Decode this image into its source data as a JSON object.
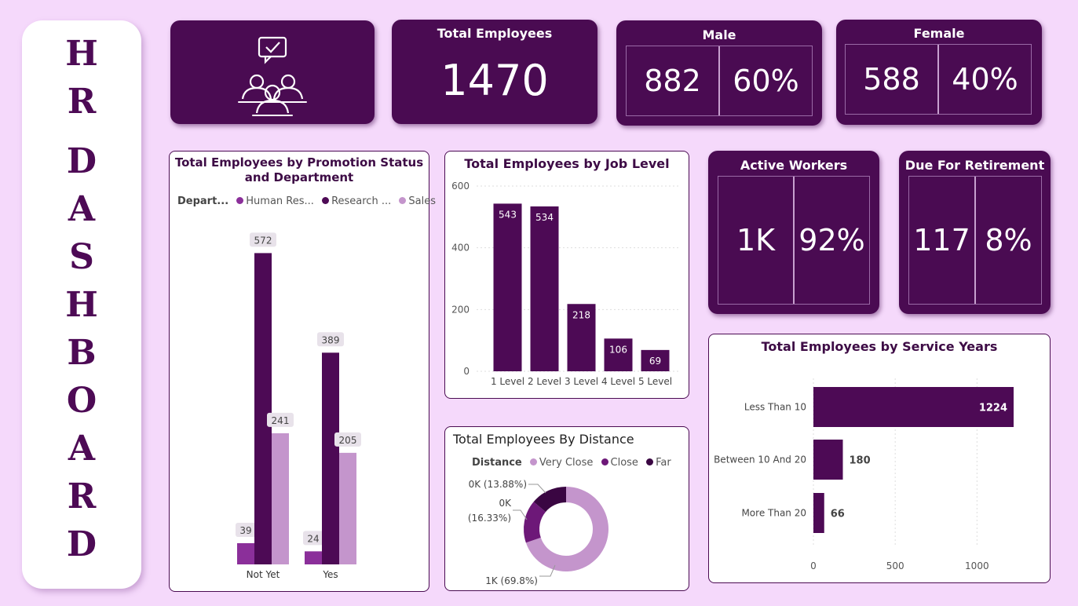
{
  "side_title": [
    "H",
    "R",
    "",
    "D",
    "A",
    "S",
    "H",
    "B",
    "O",
    "A",
    "R",
    "D"
  ],
  "kpis": {
    "total": {
      "title": "Total Employees",
      "value": "1470"
    },
    "male": {
      "title": "Male",
      "count": "882",
      "pct": "60%"
    },
    "female": {
      "title": "Female",
      "count": "588",
      "pct": "40%"
    },
    "active": {
      "title": "Active Workers",
      "count": "1K",
      "pct": "92%"
    },
    "retire": {
      "title": "Due For Retirement",
      "count": "117",
      "pct": "8%"
    }
  },
  "colors": {
    "dark": "#4a0b52",
    "mid": "#8b2f9a",
    "light": "#c495cc",
    "bg": "#f5d9fb"
  },
  "icon": "employees-group-chat-icon",
  "chart_data": [
    {
      "id": "promotion",
      "type": "bar",
      "title": "Total Employees by Promotion Status and Department",
      "legend_title": "Depart...",
      "legend_labels": [
        "Human Res...",
        "Research ...",
        "Sales"
      ],
      "categories": [
        "Not Yet",
        "Yes"
      ],
      "series": [
        {
          "name": "Human Resources",
          "values": [
            39,
            24
          ],
          "color": "#8b2f9a"
        },
        {
          "name": "Research & Development",
          "values": [
            572,
            389
          ],
          "color": "#4d0a55"
        },
        {
          "name": "Sales",
          "values": [
            241,
            205
          ],
          "color": "#c495cc"
        }
      ],
      "ylim": [
        0,
        600
      ]
    },
    {
      "id": "joblevel",
      "type": "bar",
      "title": "Total Employees by Job Level",
      "categories": [
        "1 Level",
        "2 Level",
        "3 Level",
        "4 Level",
        "5 Level"
      ],
      "values": [
        543,
        534,
        218,
        106,
        69
      ],
      "yticks": [
        0,
        200,
        400,
        600
      ],
      "ylim": [
        0,
        600
      ]
    },
    {
      "id": "distance",
      "type": "pie",
      "title": "Total Employees By Distance",
      "legend_title": "Distance",
      "labels": [
        "Very Close",
        "Close",
        "Far"
      ],
      "values": [
        69.8,
        16.33,
        13.88
      ],
      "slice_labels": [
        "1K (69.8%)",
        "0K\n(16.33%)",
        "0K (13.88%)"
      ],
      "colors": [
        "#c495cc",
        "#6d1878",
        "#3a0642"
      ]
    },
    {
      "id": "service",
      "type": "bar",
      "orientation": "horizontal",
      "title": "Total Employees by Service Years",
      "categories": [
        "Less Than 10",
        "Between 10 And 20",
        "More Than 20"
      ],
      "values": [
        1224,
        180,
        66
      ],
      "xticks": [
        0,
        500,
        1000
      ],
      "xlim": [
        0,
        1200
      ]
    }
  ]
}
